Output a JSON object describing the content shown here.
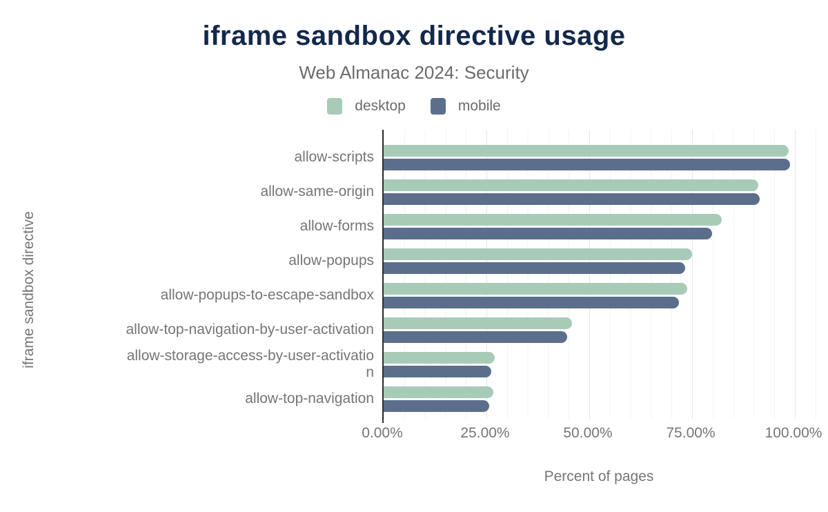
{
  "title": "iframe sandbox directive usage",
  "subtitle": "Web Almanac 2024: Security",
  "legend": [
    {
      "label": "desktop",
      "color": "#a8cbb8"
    },
    {
      "label": "mobile",
      "color": "#5b6e8c"
    }
  ],
  "chart_data": {
    "type": "bar",
    "orientation": "horizontal",
    "title": "iframe sandbox directive usage",
    "subtitle": "Web Almanac 2024: Security",
    "xlabel": "Percent of pages",
    "ylabel": "iframe sandbox directive",
    "xlim": [
      0,
      105
    ],
    "x_ticks_labels": [
      "0.00%",
      "25.00%",
      "50.00%",
      "75.00%",
      "100.00%"
    ],
    "x_tick_values": [
      0,
      25,
      50,
      75,
      100
    ],
    "grid": "vertical minor every 5%, major every 25%",
    "legend_position": "top",
    "categories": [
      "allow-scripts",
      "allow-same-origin",
      "allow-forms",
      "allow-popups",
      "allow-popups-to-escape-sandbox",
      "allow-top-navigation-by-user-activation",
      "allow-storage-access-by-user-activation",
      "allow-top-navigation"
    ],
    "series": [
      {
        "name": "desktop",
        "color": "#a8cbb8",
        "values": [
          98.5,
          91.1,
          82.2,
          75.0,
          73.8,
          45.8,
          27.0,
          26.7
        ]
      },
      {
        "name": "mobile",
        "color": "#5b6e8c",
        "values": [
          98.9,
          91.5,
          79.8,
          73.4,
          71.8,
          44.6,
          26.1,
          25.7
        ]
      }
    ]
  },
  "style": {
    "title_color": "#14284d",
    "text_color": "#757575",
    "axis_color": "#2e2e2e",
    "grid_minor_color": "#f3f3f3",
    "grid_major_color": "#e7e7e7",
    "background": "#ffffff"
  }
}
